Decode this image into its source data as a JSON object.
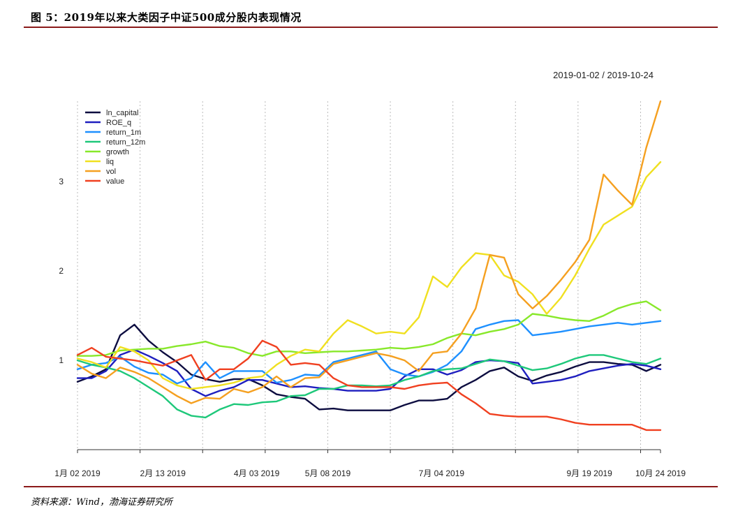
{
  "figure": {
    "title": "图 5：2019年以来大类因子中证500成分股内表现情况",
    "source": "资料来源：Wind，渤海证券研究所"
  },
  "chart_data": {
    "type": "line",
    "title": "",
    "date_range_label": "2019-01-02 / 2019-10-24",
    "xlabel": "",
    "ylabel": "",
    "ylim": [
      0.0,
      3.9
    ],
    "xlim": [
      0,
      205
    ],
    "x_ticks": [
      {
        "x": 0,
        "label": "1月 02 2019"
      },
      {
        "x": 30,
        "label": "2月 13 2019"
      },
      {
        "x": 63,
        "label": "4月 03 2019"
      },
      {
        "x": 88,
        "label": "5月 08 2019"
      },
      {
        "x": 128,
        "label": "7月 04 2019"
      },
      {
        "x": 180,
        "label": "9月 19 2019"
      },
      {
        "x": 205,
        "label": "10月 24 2019"
      }
    ],
    "x_grid": [
      0,
      22,
      44,
      66,
      88,
      110,
      132,
      154,
      176,
      198
    ],
    "y_ticks": [
      1,
      2,
      3
    ],
    "grid": true,
    "legend_position": "top-left",
    "x": [
      0,
      5,
      10,
      15,
      20,
      25,
      30,
      35,
      40,
      45,
      50,
      55,
      60,
      65,
      70,
      75,
      80,
      85,
      90,
      95,
      100,
      105,
      110,
      115,
      120,
      125,
      130,
      135,
      140,
      145,
      150,
      155,
      160,
      165,
      170,
      175,
      180,
      185,
      190,
      195,
      200,
      205
    ],
    "series": [
      {
        "name": "ln_capital",
        "color": "#0d0d40",
        "values": [
          0.76,
          0.82,
          0.9,
          1.28,
          1.4,
          1.22,
          1.09,
          0.98,
          0.84,
          0.79,
          0.76,
          0.79,
          0.79,
          0.72,
          0.62,
          0.59,
          0.57,
          0.45,
          0.46,
          0.44,
          0.44,
          0.44,
          0.44,
          0.5,
          0.55,
          0.55,
          0.57,
          0.7,
          0.78,
          0.88,
          0.92,
          0.82,
          0.77,
          0.83,
          0.87,
          0.93,
          0.98,
          0.98,
          0.96,
          0.95,
          0.88,
          0.95
        ]
      },
      {
        "name": "ROE_q",
        "color": "#1f1fbf",
        "values": [
          0.8,
          0.8,
          0.88,
          1.06,
          1.12,
          1.05,
          0.97,
          0.88,
          0.68,
          0.6,
          0.66,
          0.7,
          0.78,
          0.78,
          0.74,
          0.7,
          0.71,
          0.69,
          0.68,
          0.66,
          0.66,
          0.66,
          0.68,
          0.82,
          0.9,
          0.9,
          0.84,
          0.89,
          0.98,
          1.0,
          0.99,
          0.97,
          0.74,
          0.76,
          0.78,
          0.82,
          0.88,
          0.91,
          0.94,
          0.96,
          0.94,
          0.9
        ]
      },
      {
        "name": "return_1m",
        "color": "#1e90ff",
        "values": [
          0.9,
          0.95,
          0.97,
          1.04,
          0.93,
          0.86,
          0.84,
          0.74,
          0.8,
          0.98,
          0.8,
          0.88,
          0.88,
          0.88,
          0.75,
          0.78,
          0.84,
          0.83,
          0.98,
          1.02,
          1.06,
          1.1,
          0.9,
          0.84,
          0.82,
          0.87,
          0.95,
          1.1,
          1.35,
          1.4,
          1.44,
          1.45,
          1.28,
          1.3,
          1.32,
          1.35,
          1.38,
          1.4,
          1.42,
          1.4,
          1.42,
          1.44
        ]
      },
      {
        "name": "return_12m",
        "color": "#1ec87a",
        "values": [
          1.0,
          0.95,
          0.92,
          0.88,
          0.8,
          0.7,
          0.6,
          0.45,
          0.38,
          0.36,
          0.45,
          0.51,
          0.5,
          0.53,
          0.54,
          0.6,
          0.61,
          0.68,
          0.68,
          0.72,
          0.72,
          0.71,
          0.72,
          0.78,
          0.82,
          0.88,
          0.9,
          0.91,
          0.96,
          1.01,
          0.99,
          0.94,
          0.89,
          0.91,
          0.96,
          1.02,
          1.06,
          1.06,
          1.02,
          0.98,
          0.96,
          1.02
        ]
      },
      {
        "name": "growth",
        "color": "#88e82a",
        "values": [
          1.05,
          1.05,
          1.06,
          1.11,
          1.12,
          1.13,
          1.13,
          1.16,
          1.18,
          1.21,
          1.16,
          1.14,
          1.08,
          1.05,
          1.1,
          1.1,
          1.08,
          1.09,
          1.1,
          1.1,
          1.11,
          1.12,
          1.14,
          1.13,
          1.15,
          1.18,
          1.25,
          1.3,
          1.28,
          1.32,
          1.35,
          1.4,
          1.52,
          1.5,
          1.47,
          1.45,
          1.44,
          1.5,
          1.58,
          1.63,
          1.66,
          1.56
        ]
      },
      {
        "name": "liq",
        "color": "#f0e020",
        "values": [
          1.02,
          0.98,
          0.92,
          1.15,
          1.1,
          1.0,
          0.8,
          0.72,
          0.68,
          0.7,
          0.72,
          0.75,
          0.8,
          0.82,
          0.95,
          1.05,
          1.12,
          1.1,
          1.3,
          1.45,
          1.38,
          1.3,
          1.32,
          1.3,
          1.48,
          1.94,
          1.82,
          2.04,
          2.2,
          2.18,
          1.95,
          1.88,
          1.74,
          1.52,
          1.7,
          1.95,
          2.25,
          2.52,
          2.62,
          2.72,
          3.05,
          3.22
        ]
      },
      {
        "name": "vol",
        "color": "#f5a020",
        "values": [
          0.95,
          0.85,
          0.8,
          0.92,
          0.87,
          0.8,
          0.7,
          0.6,
          0.52,
          0.58,
          0.57,
          0.68,
          0.64,
          0.7,
          0.82,
          0.7,
          0.8,
          0.81,
          0.96,
          1.0,
          1.04,
          1.08,
          1.05,
          1.0,
          0.88,
          1.08,
          1.1,
          1.3,
          1.58,
          2.18,
          2.15,
          1.74,
          1.58,
          1.72,
          1.9,
          2.1,
          2.35,
          3.08,
          2.9,
          2.74,
          3.38,
          3.9
        ]
      },
      {
        "name": "value",
        "color": "#f04020",
        "values": [
          1.06,
          1.14,
          1.04,
          1.02,
          1.0,
          0.97,
          0.94,
          1.0,
          1.06,
          0.78,
          0.9,
          0.9,
          1.02,
          1.22,
          1.15,
          0.95,
          0.97,
          0.95,
          0.8,
          0.72,
          0.7,
          0.7,
          0.7,
          0.68,
          0.72,
          0.74,
          0.75,
          0.62,
          0.52,
          0.4,
          0.38,
          0.37,
          0.37,
          0.37,
          0.34,
          0.3,
          0.28,
          0.28,
          0.28,
          0.28,
          0.22,
          0.22
        ]
      }
    ]
  }
}
